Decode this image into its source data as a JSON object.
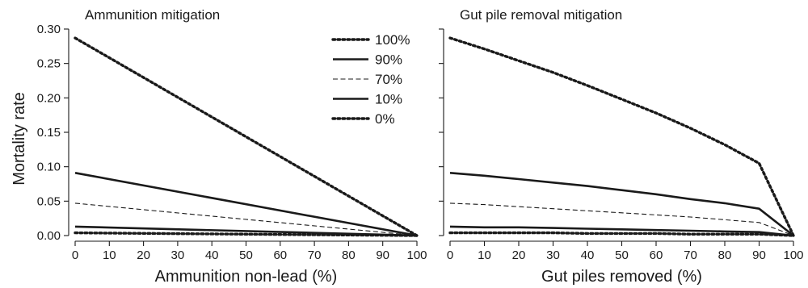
{
  "figure": {
    "ylabel": "Mortality rate"
  },
  "legend": [
    {
      "label": "100%",
      "style": "dotted-heavy"
    },
    {
      "label": "90%",
      "style": "solid-heavy"
    },
    {
      "label": "70%",
      "style": "dashed-thin"
    },
    {
      "label": "10%",
      "style": "solid-heavy"
    },
    {
      "label": "0%",
      "style": "dotted-heavy"
    }
  ],
  "chart_data": [
    {
      "type": "line",
      "title": "Ammunition mitigation",
      "xlabel": "Ammunition non-lead (%)",
      "ylabel": "Mortality rate",
      "xlim": [
        0,
        100
      ],
      "ylim": [
        0,
        0.3
      ],
      "xticks": [
        "0",
        "10",
        "20",
        "30",
        "40",
        "50",
        "60",
        "70",
        "80",
        "90",
        "100"
      ],
      "yticks": [
        "0.00",
        "0.05",
        "0.10",
        "0.15",
        "0.20",
        "0.25",
        "0.30"
      ],
      "grid": false,
      "legend_position": "top-right",
      "series": [
        {
          "name": "100%",
          "style": "dotted-heavy",
          "x": [
            0,
            100
          ],
          "y": [
            0.287,
            0.0
          ]
        },
        {
          "name": "90%",
          "style": "solid-heavy",
          "x": [
            0,
            100
          ],
          "y": [
            0.091,
            0.0
          ]
        },
        {
          "name": "70%",
          "style": "dashed-thin",
          "x": [
            0,
            100
          ],
          "y": [
            0.047,
            0.0
          ]
        },
        {
          "name": "10%",
          "style": "solid-heavy",
          "x": [
            0,
            100
          ],
          "y": [
            0.013,
            0.0
          ]
        },
        {
          "name": "0%",
          "style": "dotted-heavy",
          "x": [
            0,
            100
          ],
          "y": [
            0.004,
            0.0
          ]
        }
      ]
    },
    {
      "type": "line",
      "title": "Gut pile removal mitigation",
      "xlabel": "Gut piles removed (%)",
      "ylabel": "",
      "xlim": [
        0,
        100
      ],
      "ylim": [
        0,
        0.3
      ],
      "xticks": [
        "0",
        "10",
        "20",
        "30",
        "40",
        "50",
        "60",
        "70",
        "80",
        "90",
        "100"
      ],
      "yticks": [
        "0.00",
        "0.05",
        "0.10",
        "0.15",
        "0.20",
        "0.25",
        "0.30"
      ],
      "show_ytick_labels": false,
      "grid": false,
      "series": [
        {
          "name": "100%",
          "style": "dotted-heavy",
          "x": [
            0,
            10,
            20,
            30,
            40,
            50,
            60,
            70,
            80,
            90,
            100
          ],
          "y": [
            0.287,
            0.271,
            0.254,
            0.237,
            0.218,
            0.198,
            0.178,
            0.156,
            0.132,
            0.105,
            0.0
          ]
        },
        {
          "name": "90%",
          "style": "solid-heavy",
          "x": [
            0,
            10,
            20,
            30,
            40,
            50,
            60,
            70,
            80,
            90,
            100
          ],
          "y": [
            0.091,
            0.087,
            0.082,
            0.077,
            0.072,
            0.066,
            0.06,
            0.053,
            0.047,
            0.039,
            0.0
          ]
        },
        {
          "name": "70%",
          "style": "dashed-thin",
          "x": [
            0,
            10,
            20,
            30,
            40,
            50,
            60,
            70,
            80,
            90,
            100
          ],
          "y": [
            0.047,
            0.045,
            0.042,
            0.039,
            0.036,
            0.033,
            0.03,
            0.027,
            0.023,
            0.019,
            0.0
          ]
        },
        {
          "name": "10%",
          "style": "solid-heavy",
          "x": [
            0,
            10,
            20,
            30,
            40,
            50,
            60,
            70,
            80,
            90,
            100
          ],
          "y": [
            0.013,
            0.012,
            0.012,
            0.011,
            0.01,
            0.009,
            0.008,
            0.007,
            0.006,
            0.005,
            0.0
          ]
        },
        {
          "name": "0%",
          "style": "dotted-heavy",
          "x": [
            0,
            10,
            20,
            30,
            40,
            50,
            60,
            70,
            80,
            90,
            100
          ],
          "y": [
            0.004,
            0.004,
            0.004,
            0.004,
            0.003,
            0.003,
            0.003,
            0.002,
            0.002,
            0.002,
            0.0
          ]
        }
      ]
    }
  ]
}
